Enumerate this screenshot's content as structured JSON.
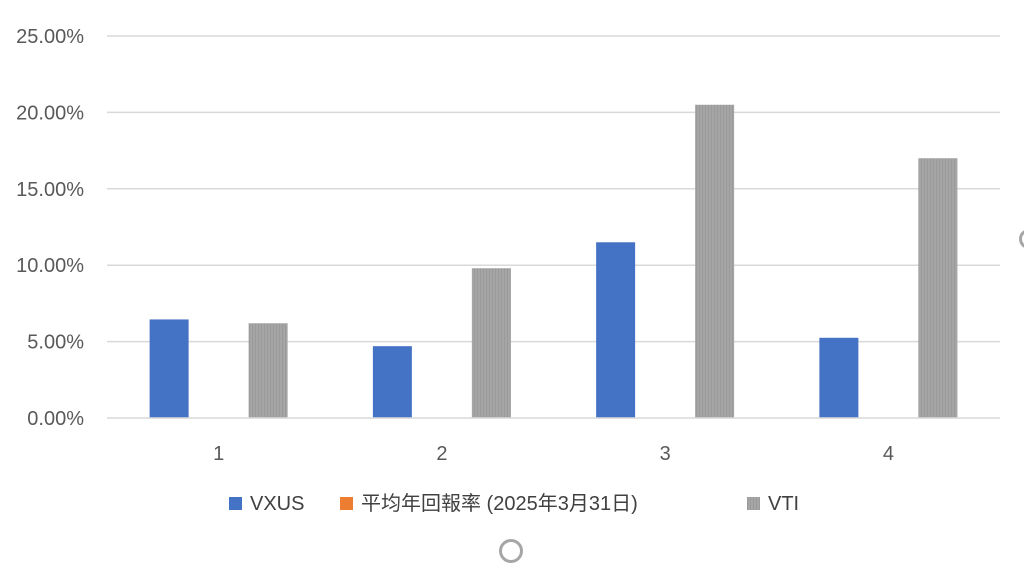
{
  "chart_data": {
    "type": "bar",
    "categories": [
      "1",
      "2",
      "3",
      "4"
    ],
    "series": [
      {
        "name": "VXUS",
        "color": "#4472C4",
        "values": [
          0.0645,
          0.047,
          0.115,
          0.0525
        ]
      },
      {
        "name": "平均年回報率 (2025年3月31日)",
        "color": "#ED7D31",
        "values": [
          0,
          0,
          0,
          0
        ]
      },
      {
        "name": "VTI",
        "color": "#A5A5A5",
        "values": [
          0.062,
          0.098,
          0.205,
          0.17
        ]
      }
    ],
    "yticks": [
      "0.00%",
      "5.00%",
      "10.00%",
      "15.00%",
      "20.00%",
      "25.00%"
    ],
    "ylim": [
      0,
      0.25
    ],
    "grid": true,
    "legend_position": "bottom"
  }
}
